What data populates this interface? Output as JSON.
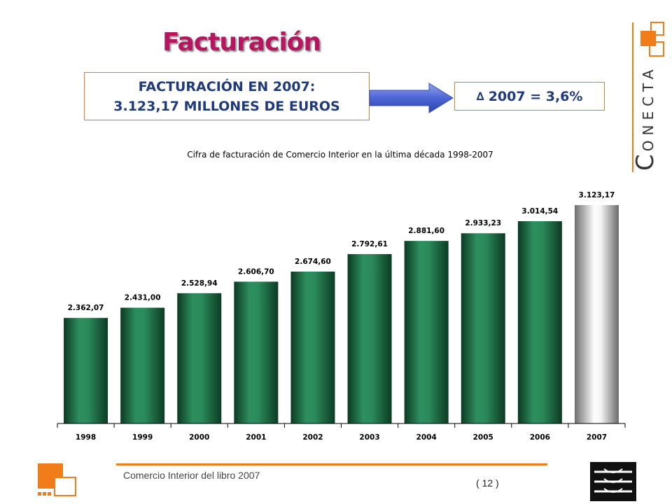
{
  "header": {
    "title": "Facturación",
    "summary_line1": "FACTURACIÓN EN 2007:",
    "summary_line2": "3.123,17 MILLONES DE EUROS",
    "delta_symbol": "∆",
    "delta_text": "2007 = 3,6%"
  },
  "brand": {
    "first_letter": "C",
    "rest": "ONECTA",
    "accent_color": "#f07d1a"
  },
  "footer": {
    "text": "Comercio Interior del libro 2007",
    "page": "( 12 )"
  },
  "chart_data": {
    "type": "bar",
    "title": "Cifra de facturación de Comercio Interior en la última década 1998-2007",
    "categories": [
      "1998",
      "1999",
      "2000",
      "2001",
      "2002",
      "2003",
      "2004",
      "2005",
      "2006",
      "2007"
    ],
    "values": [
      2362.07,
      2431.0,
      2528.94,
      2606.7,
      2674.6,
      2792.61,
      2881.6,
      2933.23,
      3014.54,
      3123.17
    ],
    "data_labels": [
      "2.362,07",
      "2.431,00",
      "2.528,94",
      "2.606,70",
      "2.674,60",
      "2.792,61",
      "2.881,60",
      "2.933,23",
      "3.014,54",
      "3.123,17"
    ],
    "series_colors": {
      "default": "#1f7a4e",
      "highlight": "#b8b8b8"
    },
    "highlight_category": "2007",
    "ylim": [
      0,
      3123.17
    ],
    "grid": false,
    "xlabel": "",
    "ylabel": ""
  }
}
